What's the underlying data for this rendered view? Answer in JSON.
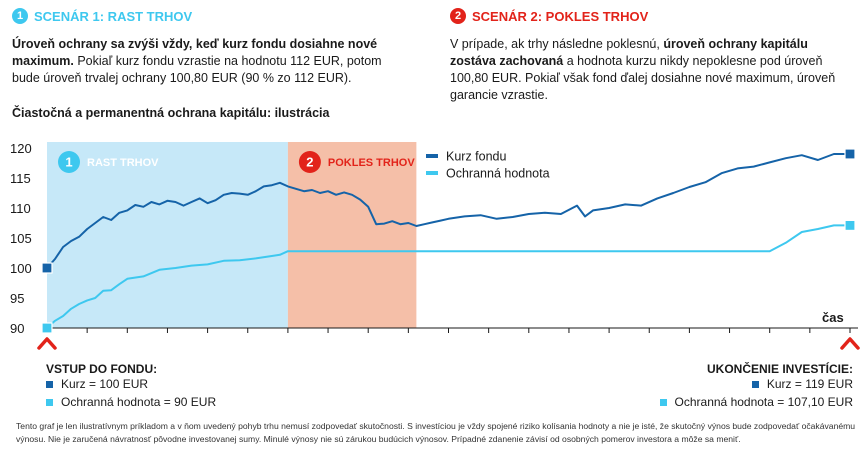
{
  "colors": {
    "blue": "#1563a8",
    "cyan": "#3ec8ef",
    "red": "#e2231a",
    "phase1_bg": "#c6e8f8",
    "phase2_bg": "#f5bfa8"
  },
  "scenario1": {
    "number": "1",
    "title": "SCENÁR 1: RAST TRHOV",
    "bold_text": "Úroveň ochrany sa zvýši vždy, keď kurz fondu dosiahne nové maximum.",
    "rest_text": " Pokiaľ kurz fondu vzrastie na hodnotu 112 EUR, potom bude úroveň trvalej ochrany 100,80 EUR (90 % zo 112 EUR)."
  },
  "scenario2": {
    "number": "2",
    "title": "SCENÁR 2: POKLES TRHOV",
    "text_a": "V prípade, ak trhy následne poklesnú, ",
    "bold_text": "úroveň ochrany kapitálu zostáva zachovaná",
    "text_b": " a hodnota kurzu nikdy nepoklesne pod úroveň 100,80 EUR. Pokiaľ však fond ďalej dosiahne nové maximum, úroveň garancie vzrastie."
  },
  "chart_title": "Čiastočná a permanentná ochrana kapitálu: ilustrácia",
  "chart_data": {
    "type": "line",
    "ylim": [
      90,
      120
    ],
    "yticks": [
      "120",
      "115",
      "110",
      "105",
      "100",
      "95",
      "90"
    ],
    "xlabel": "čas",
    "phases": [
      {
        "number": "1",
        "label": "RAST TRHOV",
        "x_start": 0,
        "x_end": 30
      },
      {
        "number": "2",
        "label": "POKLES TRHOV",
        "x_start": 30,
        "x_end": 46
      }
    ],
    "series": [
      {
        "name": "Kurz fondu",
        "x": [
          0,
          1,
          2,
          3,
          4,
          5,
          6,
          7,
          8,
          9,
          10,
          11,
          12,
          13,
          14,
          15,
          16,
          17,
          18,
          19,
          20,
          21,
          22,
          23,
          24,
          25,
          26,
          27,
          28,
          29,
          30,
          31,
          32,
          33,
          34,
          35,
          36,
          37,
          38,
          39,
          40,
          41,
          42,
          43,
          44,
          45,
          46,
          47,
          48,
          49,
          50,
          52,
          54,
          56,
          58,
          60,
          62,
          64,
          66,
          67,
          68,
          70,
          72,
          74,
          76,
          78,
          80,
          82,
          84,
          86,
          88,
          90,
          92,
          94,
          96,
          98,
          100
        ],
        "values": [
          100,
          101.5,
          103.5,
          104.5,
          105.2,
          106.5,
          107.5,
          108.5,
          108,
          109.2,
          109.6,
          110.5,
          110.2,
          111,
          110.6,
          111.2,
          111,
          110.4,
          111,
          111.6,
          110.8,
          111.3,
          112.2,
          112.5,
          112.4,
          112.2,
          112.8,
          113.6,
          113.8,
          114.2,
          113.6,
          113.2,
          112.8,
          113,
          112.5,
          112.8,
          112.2,
          112.6,
          112.2,
          111.4,
          110.2,
          107.3,
          107.4,
          107.8,
          107.3,
          107.5,
          107,
          107.3,
          107.6,
          107.9,
          108.2,
          108.6,
          108.8,
          108.2,
          108.5,
          109,
          109.2,
          109,
          110.4,
          108.6,
          109.6,
          110,
          110.6,
          110.4,
          111.6,
          112.5,
          113.5,
          114.3,
          115.8,
          116.6,
          116.9,
          117.6,
          118.3,
          118.8,
          118,
          119,
          119
        ]
      },
      {
        "name": "Ochranná hodnota",
        "x": [
          0,
          1,
          2,
          3,
          4,
          5,
          6,
          7,
          8,
          9,
          10,
          12,
          14,
          16,
          18,
          20,
          22,
          24,
          26,
          28,
          29,
          30,
          46,
          90,
          92,
          94,
          96,
          98,
          100
        ],
        "values": [
          90,
          91.2,
          92,
          93.2,
          94,
          94.6,
          95,
          96.2,
          96.3,
          97.3,
          98.2,
          98.6,
          99.7,
          100,
          100.4,
          100.6,
          101.2,
          101.3,
          101.6,
          102,
          102.2,
          102.8,
          102.8,
          102.8,
          104.2,
          106,
          106.5,
          107.1,
          107.1
        ]
      }
    ]
  },
  "entry": {
    "title": "VSTUP DO FONDU:",
    "rate": "Kurz = 100 EUR",
    "protection": "Ochranná hodnota = 90 EUR"
  },
  "exit": {
    "title": "UKONČENIE INVESTÍCIE:",
    "rate": "Kurz = 119 EUR",
    "protection": "Ochranná hodnota = 107,10 EUR"
  },
  "disclaimer": "Tento graf je len ilustratívnym príkladom a v ňom uvedený pohyb trhu nemusí zodpovedať skutočnosti. S investíciou je vždy spojené riziko kolísania hodnoty a nie je isté, že skutočný výnos bude zodpovedať očakávanému výnosu. Nie je zaručená návratnosť pôvodne investovanej sumy. Minulé výnosy nie sú zárukou budúcich výnosov. Prípadné zdanenie závisí od osobných pomerov investora a môže sa meniť."
}
